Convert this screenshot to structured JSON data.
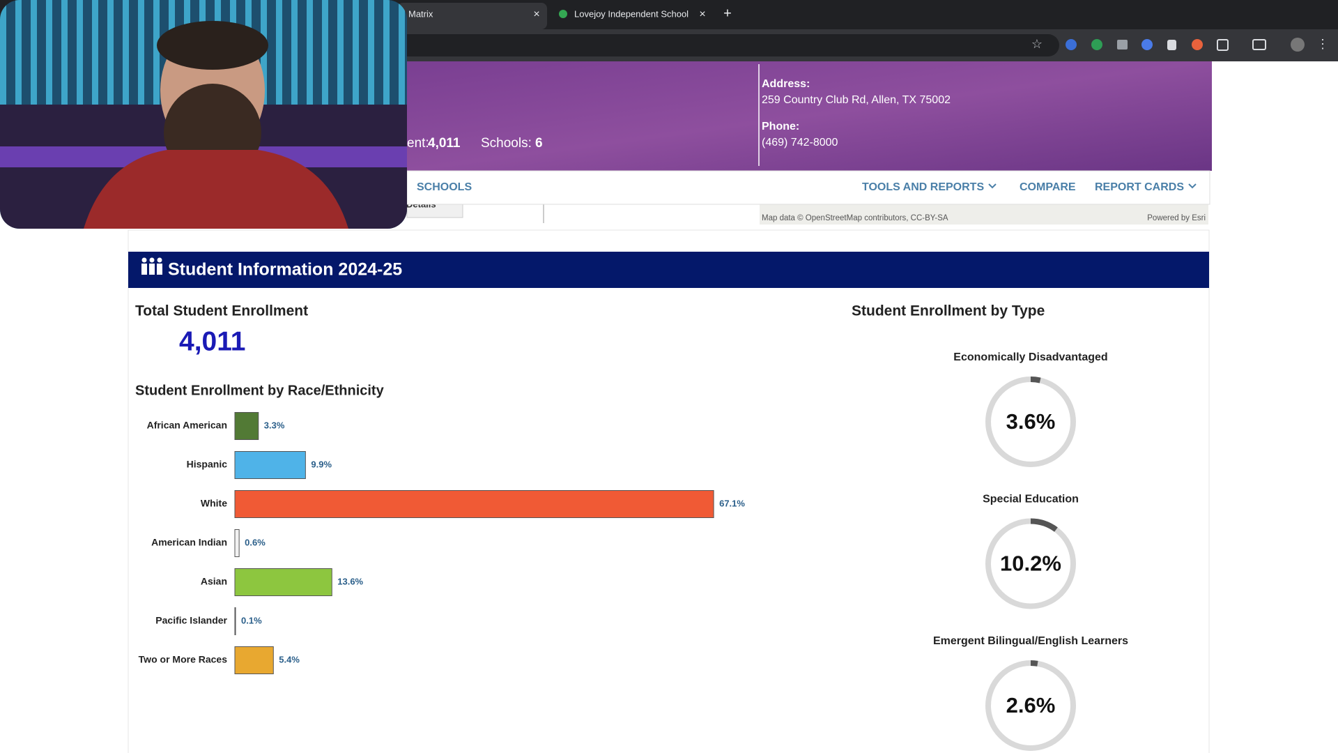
{
  "browser": {
    "tabs": [
      {
        "title": "Matrix"
      },
      {
        "title": "Lovejoy Independent School"
      }
    ]
  },
  "header": {
    "enrollment_label": "ent:",
    "enrollment": "4,011",
    "schools_label": "Schools:",
    "schools": "6",
    "address_label": "Address:",
    "address": "259 Country Club Rd, Allen, TX 75002",
    "phone_label": "Phone:",
    "phone": "(469) 742-8000"
  },
  "nav": [
    "SCHOOLS",
    "TOOLS AND REPORTS",
    "COMPARE",
    "REPORT CARDS"
  ],
  "map": {
    "details": "Details",
    "attribution": "Map data © OpenStreetMap contributors, CC-BY-SA",
    "powered": "Powered by Esri"
  },
  "section": {
    "title": "Student Information 2024-25",
    "total_label": "Total Student Enrollment",
    "total": "4,011"
  },
  "race_chart": {
    "type": "bar",
    "title": "Student Enrollment by Race/Ethnicity",
    "categories": [
      "African American",
      "Hispanic",
      "White",
      "American Indian",
      "Asian",
      "Pacific Islander",
      "Two or More Races"
    ],
    "values": [
      3.3,
      9.9,
      67.1,
      0.6,
      13.6,
      0.1,
      5.4
    ],
    "value_labels": [
      "3.3%",
      "9.9%",
      "67.1%",
      "0.6%",
      "13.6%",
      "0.1%",
      "5.4%"
    ],
    "colors": [
      "#527a35",
      "#4fb3e8",
      "#f05a35",
      "#f2f2f2",
      "#8dc63f",
      "#e9e9f5",
      "#e8a830"
    ]
  },
  "type_chart": {
    "type": "donut",
    "title": "Student Enrollment by Type",
    "categories": [
      "Economically Disadvantaged",
      "Special Education",
      "Emergent Bilingual/English Learners"
    ],
    "values": [
      3.6,
      10.2,
      2.6
    ],
    "value_labels": [
      "3.6%",
      "10.2%",
      "2.6%"
    ],
    "color": "#555555",
    "track_color": "#d9d9d9"
  }
}
